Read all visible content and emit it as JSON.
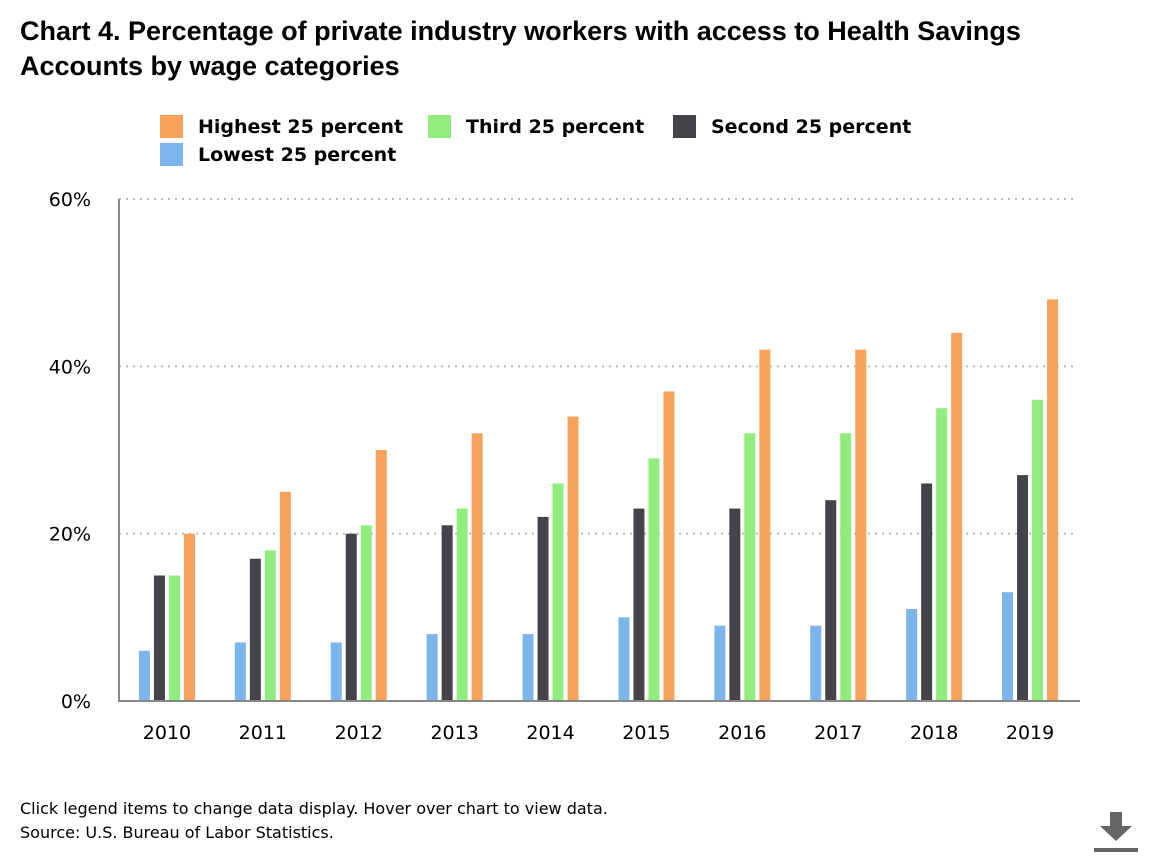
{
  "chart_data": {
    "type": "bar",
    "title": "Chart 4. Percentage of private industry workers with access to Health Savings Accounts by wage categories",
    "xlabel": "",
    "ylabel": "",
    "ylim": [
      0,
      60
    ],
    "yticks": [
      0,
      20,
      40,
      60
    ],
    "ytick_labels": [
      "0%",
      "20%",
      "40%",
      "60%"
    ],
    "grid": true,
    "legend_position": "top",
    "categories": [
      "2010",
      "2011",
      "2012",
      "2013",
      "2014",
      "2015",
      "2016",
      "2017",
      "2018",
      "2019"
    ],
    "series": [
      {
        "name": "Lowest 25 percent",
        "color": "#7cb5ec",
        "values": [
          6,
          7,
          7,
          8,
          8,
          10,
          9,
          9,
          11,
          13
        ]
      },
      {
        "name": "Second 25 percent",
        "color": "#434348",
        "values": [
          15,
          17,
          20,
          21,
          22,
          23,
          23,
          24,
          26,
          27
        ]
      },
      {
        "name": "Third 25 percent",
        "color": "#90ed7d",
        "values": [
          15,
          18,
          21,
          23,
          26,
          29,
          32,
          32,
          35,
          36
        ]
      },
      {
        "name": "Highest 25 percent",
        "color": "#f7a35c",
        "values": [
          20,
          25,
          30,
          32,
          34,
          37,
          42,
          42,
          44,
          48
        ]
      }
    ]
  },
  "legend": {
    "items": [
      {
        "label": "Highest 25 percent",
        "color": "#f7a35c"
      },
      {
        "label": "Third 25 percent",
        "color": "#90ed7d"
      },
      {
        "label": "Second 25 percent",
        "color": "#434348"
      },
      {
        "label": "Lowest 25 percent",
        "color": "#7cb5ec"
      }
    ]
  },
  "footer": {
    "instructions": "Click legend items to change data display. Hover over chart to view data.",
    "source": "Source: U.S. Bureau of Labor Statistics."
  },
  "icons": {
    "download": "download-icon"
  }
}
